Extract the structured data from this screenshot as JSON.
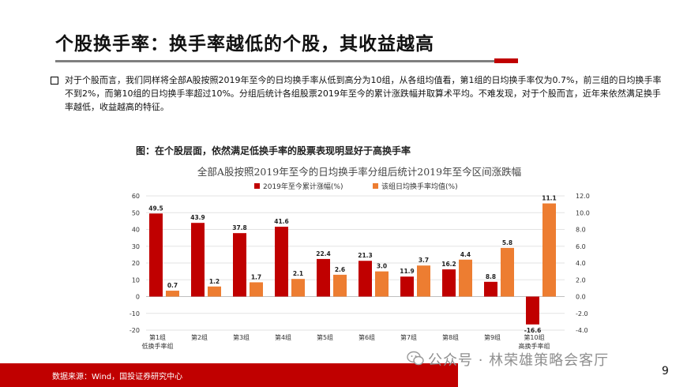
{
  "slide": {
    "title": "个股换手率：换手率越低的个股，其收益越高",
    "paragraph": "对于个股而言，我们同样将全部A股按照2019年至今的日均换手率从低到高分为10组，从各组均值看，第1组的日均换手率仅为0.7%，前三组的日均换手率不到2%，而第10组的日均换手率超过10%。分组后统计各组股票2019年至今的累计涨跌幅并取算术平均。不难发现，对于个股而言，近年来依然满足换手率越低，收益越高的特征。",
    "figure_caption": "图：在个股层面，依然满足低换手率的股票表现明显好于高换手率",
    "source": "数据来源：Wind，国投证券研究中心",
    "watermark": "公众号 · 林荣雄策略会客厅",
    "page_number": "9"
  },
  "chart_data": {
    "type": "bar",
    "title": "全部A股按照2019年至今的日均换手率分组后统计2019年至今区间涨跌幅",
    "categories": [
      "第1组",
      "第2组",
      "第3组",
      "第4组",
      "第5组",
      "第6组",
      "第7组",
      "第8组",
      "第9组",
      "第10组"
    ],
    "category_sublabels": [
      "低换手率组",
      "",
      "",
      "",
      "",
      "",
      "",
      "",
      "",
      "高换手率组"
    ],
    "series": [
      {
        "name": "2019年至今累计涨幅(%)",
        "axis": "left",
        "color": "#c00000",
        "values": [
          49.5,
          43.9,
          37.8,
          41.6,
          22.4,
          21.3,
          11.9,
          16.2,
          8.8,
          -16.6
        ]
      },
      {
        "name": "该组日均换手率均值(%)",
        "axis": "right",
        "color": "#ed7d31",
        "values": [
          0.7,
          1.2,
          1.7,
          2.1,
          2.6,
          3.0,
          3.7,
          4.4,
          5.8,
          11.1
        ]
      }
    ],
    "y_left": {
      "min": -20,
      "max": 60,
      "ticks": [
        "-20",
        "-10",
        "0",
        "10",
        "20",
        "30",
        "40",
        "50",
        "60"
      ]
    },
    "y_right": {
      "min": -4,
      "max": 12,
      "ticks": [
        "-4.0",
        "-2.0",
        "0.0",
        "2.0",
        "4.0",
        "6.0",
        "8.0",
        "10.0",
        "12.0"
      ]
    },
    "left_labels": [
      "49.5",
      "43.9",
      "37.8",
      "41.6",
      "22.4",
      "21.3",
      "11.9",
      "16.2",
      "8.8",
      "-16.6"
    ],
    "right_labels": [
      "0.7",
      "1.2",
      "1.7",
      "2.1",
      "2.6",
      "3.0",
      "3.7",
      "4.4",
      "5.8",
      "11.1"
    ],
    "grid": true,
    "legend_position": "top"
  }
}
